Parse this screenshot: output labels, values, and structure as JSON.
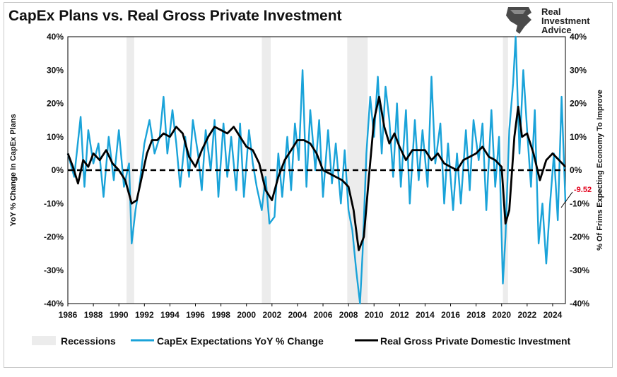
{
  "brand": {
    "lines": [
      "Real",
      "Investment",
      "Advice"
    ],
    "icon": "eagle-head-icon"
  },
  "chart_data": {
    "type": "line",
    "title": "CapEx Plans vs. Real Gross Private Investment",
    "ylabel_left": "YoY % Change In CapEx Plans",
    "ylabel_right": "% Of Frims Expecting Economy To Improve",
    "xlim": [
      1986,
      2025
    ],
    "ylim_left": [
      -40,
      40
    ],
    "ylim_right": [
      -40,
      40
    ],
    "x_ticks": [
      "1986",
      "1988",
      "1990",
      "1992",
      "1994",
      "1996",
      "1998",
      "2000",
      "2002",
      "2004",
      "2006",
      "2008",
      "2010",
      "2012",
      "2014",
      "2016",
      "2018",
      "2020",
      "2022",
      "2024"
    ],
    "y_ticks_left": [
      "40%",
      "30%",
      "20%",
      "10%",
      "0%",
      "-10%",
      "-20%",
      "-30%",
      "-40%"
    ],
    "y_ticks_right": [
      "40%",
      "30%",
      "20%",
      "10%",
      "0%",
      "-10%",
      "-20%",
      "-30%",
      "-40%"
    ],
    "reference_line": 0,
    "recessions": [
      [
        1990.6,
        1991.2
      ],
      [
        2001.2,
        2001.9
      ],
      [
        2007.9,
        2009.5
      ],
      [
        2020.1,
        2020.5
      ]
    ],
    "legend": [
      "Recessions",
      "CapEx Expectations YoY % Change",
      "Real Gross Private Domestic Investment"
    ],
    "callout": {
      "text": "-9.52",
      "value": -9.52,
      "x": 2025.0
    },
    "colors": {
      "capex": "#1aa3d9",
      "investment": "#000000",
      "recession": "#ececec",
      "callout": "#e3001b"
    },
    "series": [
      {
        "name": "CapEx Expectations YoY % Change",
        "x": [
          1986.0,
          1986.5,
          1987.0,
          1987.3,
          1987.6,
          1988.0,
          1988.4,
          1988.8,
          1989.2,
          1989.6,
          1990.0,
          1990.4,
          1990.8,
          1991.0,
          1991.3,
          1991.6,
          1992.0,
          1992.4,
          1992.8,
          1993.2,
          1993.5,
          1993.8,
          1994.2,
          1994.5,
          1994.8,
          1995.2,
          1995.5,
          1995.8,
          1996.2,
          1996.5,
          1996.8,
          1997.2,
          1997.5,
          1997.8,
          1998.2,
          1998.5,
          1998.8,
          1999.2,
          1999.5,
          1999.8,
          2000.2,
          2000.5,
          2000.8,
          2001.2,
          2001.5,
          2001.8,
          2002.2,
          2002.5,
          2002.8,
          2003.2,
          2003.5,
          2003.8,
          2004.1,
          2004.4,
          2004.7,
          2005.0,
          2005.4,
          2005.7,
          2006.0,
          2006.4,
          2006.7,
          2007.0,
          2007.4,
          2007.7,
          2008.0,
          2008.3,
          2008.6,
          2008.9,
          2009.1,
          2009.4,
          2009.7,
          2010.0,
          2010.3,
          2010.6,
          2010.9,
          2011.2,
          2011.5,
          2011.8,
          2012.1,
          2012.5,
          2012.8,
          2013.2,
          2013.5,
          2013.8,
          2014.2,
          2014.5,
          2014.8,
          2015.2,
          2015.5,
          2015.8,
          2016.2,
          2016.5,
          2016.8,
          2017.2,
          2017.5,
          2017.8,
          2018.2,
          2018.5,
          2018.8,
          2019.2,
          2019.5,
          2019.8,
          2020.1,
          2020.3,
          2020.6,
          2020.9,
          2021.1,
          2021.4,
          2021.7,
          2022.0,
          2022.3,
          2022.6,
          2022.9,
          2023.2,
          2023.5,
          2023.8,
          2024.1,
          2024.4,
          2024.7,
          2025.0
        ],
        "values": [
          5,
          -2,
          16,
          -5,
          12,
          2,
          8,
          -8,
          10,
          -3,
          12,
          -5,
          2,
          -22,
          -12,
          -5,
          8,
          15,
          5,
          10,
          22,
          5,
          18,
          8,
          -5,
          10,
          -2,
          15,
          5,
          -6,
          12,
          0,
          15,
          -8,
          14,
          -2,
          10,
          -6,
          14,
          -8,
          12,
          2,
          -5,
          -12,
          -2,
          -16,
          -14,
          5,
          -8,
          10,
          -6,
          14,
          3,
          30,
          -5,
          18,
          0,
          15,
          -8,
          12,
          -4,
          8,
          -10,
          6,
          -12,
          -18,
          -30,
          -40,
          -25,
          5,
          22,
          10,
          28,
          5,
          25,
          15,
          -2,
          20,
          -5,
          18,
          -10,
          15,
          -3,
          12,
          -5,
          28,
          2,
          14,
          -10,
          8,
          -12,
          5,
          -10,
          12,
          -6,
          15,
          3,
          14,
          -12,
          18,
          -5,
          10,
          -34,
          -20,
          12,
          26,
          40,
          5,
          30,
          12,
          -5,
          18,
          -22,
          -10,
          -28,
          -10,
          5,
          -15,
          22,
          -9.52
        ]
      },
      {
        "name": "Real Gross Private Domestic Investment",
        "x": [
          1986.0,
          1986.4,
          1986.8,
          1987.2,
          1987.6,
          1988.0,
          1988.5,
          1989.0,
          1989.5,
          1990.0,
          1990.5,
          1991.0,
          1991.4,
          1991.8,
          1992.2,
          1992.6,
          1993.0,
          1993.5,
          1994.0,
          1994.5,
          1995.0,
          1995.5,
          1996.0,
          1996.5,
          1997.0,
          1997.5,
          1998.0,
          1998.5,
          1999.0,
          1999.5,
          2000.0,
          2000.5,
          2001.0,
          2001.5,
          2002.0,
          2002.5,
          2003.0,
          2003.5,
          2004.0,
          2004.5,
          2005.0,
          2005.5,
          2006.0,
          2006.5,
          2007.0,
          2007.5,
          2008.0,
          2008.4,
          2008.8,
          2009.2,
          2009.6,
          2010.0,
          2010.4,
          2010.8,
          2011.2,
          2011.6,
          2012.0,
          2012.5,
          2013.0,
          2013.5,
          2014.0,
          2014.5,
          2015.0,
          2015.5,
          2016.0,
          2016.5,
          2017.0,
          2017.5,
          2018.0,
          2018.5,
          2019.0,
          2019.5,
          2020.0,
          2020.3,
          2020.6,
          2021.0,
          2021.3,
          2021.6,
          2022.0,
          2022.5,
          2023.0,
          2023.5,
          2024.0,
          2024.5,
          2025.0
        ],
        "values": [
          5,
          1,
          -4,
          3,
          1,
          5,
          3,
          6,
          2,
          0,
          -3,
          -10,
          -9,
          -2,
          5,
          9,
          9,
          11,
          10,
          13,
          11,
          4,
          1,
          6,
          10,
          13,
          12,
          11,
          13,
          10,
          7,
          6,
          2,
          -6,
          -9,
          -2,
          3,
          6,
          9,
          9,
          8,
          5,
          0,
          -1,
          -2,
          -3,
          -5,
          -12,
          -24,
          -20,
          -2,
          15,
          22,
          13,
          8,
          11,
          7,
          3,
          6,
          6,
          6,
          3,
          5,
          2,
          1,
          0,
          3,
          4,
          5,
          7,
          4,
          3,
          1,
          -16,
          -12,
          10,
          19,
          10,
          11,
          5,
          -3,
          3,
          5,
          3,
          1
        ]
      }
    ]
  }
}
